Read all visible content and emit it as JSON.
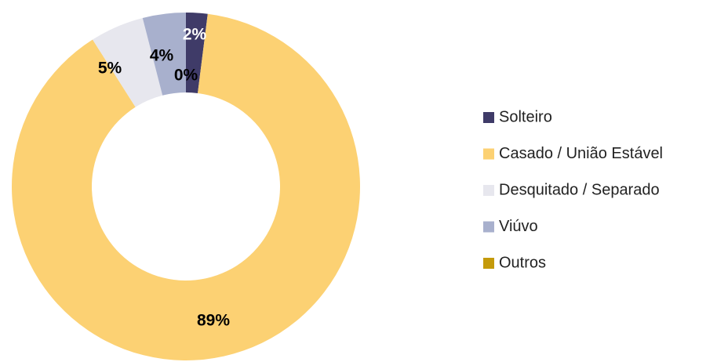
{
  "chart_data": {
    "type": "donut",
    "categories": [
      "Solteiro",
      "Casado / União Estável",
      "Desquitado / Separado",
      "Viúvo",
      "Outros"
    ],
    "values": [
      2,
      89,
      5,
      4,
      0
    ],
    "value_labels": [
      "2%",
      "89%",
      "5%",
      "4%",
      "0%"
    ],
    "colors": [
      "#3f3b68",
      "#fcd173",
      "#e7e7ee",
      "#a8b0cd",
      "#c49a0a"
    ],
    "label_colors": [
      "#ffffff",
      "#000000",
      "#000000",
      "#000000",
      "#000000"
    ],
    "legend": "right"
  }
}
